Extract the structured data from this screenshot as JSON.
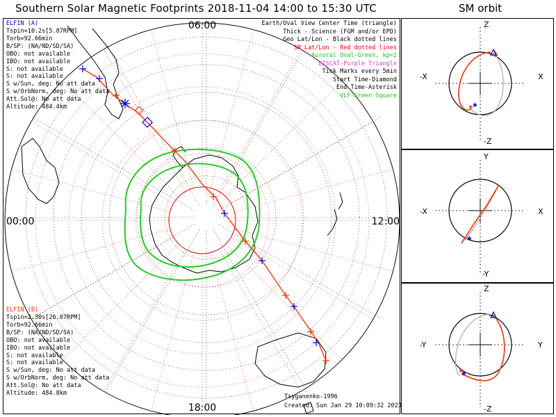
{
  "title": "Southern Solar Magnetic Footprints 2018-11-04 14:00 to 15:30 UTC",
  "sm_title": "SM orbit",
  "clock_labels": {
    "top": "06:00",
    "left": "00:00",
    "right": "12:00",
    "bottom": "18:00"
  },
  "elfin_a": {
    "name": "ELFIN (A)",
    "lines": [
      "Tspin=10.2s[5.87RPM]",
      "Torb=92.66min",
      "B/SP: (NA/ND/SD/SA)",
      "OBO: not available",
      "IBO: not available",
      "S: not available",
      "S: not available",
      "S w/Sun, deg: No att data",
      "S w/OrbNorm, deg: No att data",
      "Att.Sol@: No att data",
      "Altitude: 484.4km"
    ]
  },
  "elfin_b": {
    "name": "ELFIN (B)",
    "lines": [
      "Tspin=2.30s[26.07RPM]",
      "Torb=92.66min",
      "B/SP: (NA/ND/SD/SA)",
      "OBO: not available",
      "IBO: not available",
      "S: not available",
      "S: not available",
      "S w/Sun, deg: No att data",
      "S w/OrbNorm, deg: No att data",
      "Att.Sol@: No att data",
      "Altitude: 484.8km"
    ]
  },
  "legend": [
    {
      "text": "Earth/Oval View Center Time (triangle)",
      "color": "#000000"
    },
    {
      "text": "Thick - Science (FGM and/or EPD)",
      "color": "#000000"
    },
    {
      "text": "Geo Lat/Lon - Black dotted lines",
      "color": "#000000"
    },
    {
      "text": "SM Lat/Lon - Red dotted lines",
      "color": "#ff0000"
    },
    {
      "text": "Auroral Oval-Green, kp=2",
      "color": "#22bb22"
    },
    {
      "text": "EISCAT-Purple Triangle",
      "color": "#cc44cc"
    },
    {
      "text": "Tick Marks every 5min",
      "color": "#000000"
    },
    {
      "text": "Start Time-Diamond",
      "color": "#000000"
    },
    {
      "text": "End Time-Asterisk",
      "color": "#000000"
    },
    {
      "text": "VLF-Green Square",
      "color": "#22bb22"
    }
  ],
  "footer": {
    "model": "Tsyganenko-1996",
    "created": "Created: Sun Jan 29 10:09:32 2023"
  },
  "sm_panels": [
    {
      "top": "Z",
      "bottom": "-Z",
      "left": "-X",
      "right": "X"
    },
    {
      "top": "Y",
      "bottom": "-Y",
      "left": "-X",
      "right": "X"
    },
    {
      "top": "Z",
      "bottom": "-Z",
      "left": "-Y",
      "right": "Y"
    }
  ],
  "colors": {
    "elfin_a": "#0000cc",
    "elfin_b": "#ff3300",
    "track": "#ee4422",
    "oval": "#22cc22",
    "sm_grid": "#cc0000",
    "geo_grid": "#000000",
    "eiscat": "#cc44cc"
  },
  "icons": [
    "diamond-start-icon",
    "asterisk-end-icon",
    "triangle-view-center-icon"
  ]
}
